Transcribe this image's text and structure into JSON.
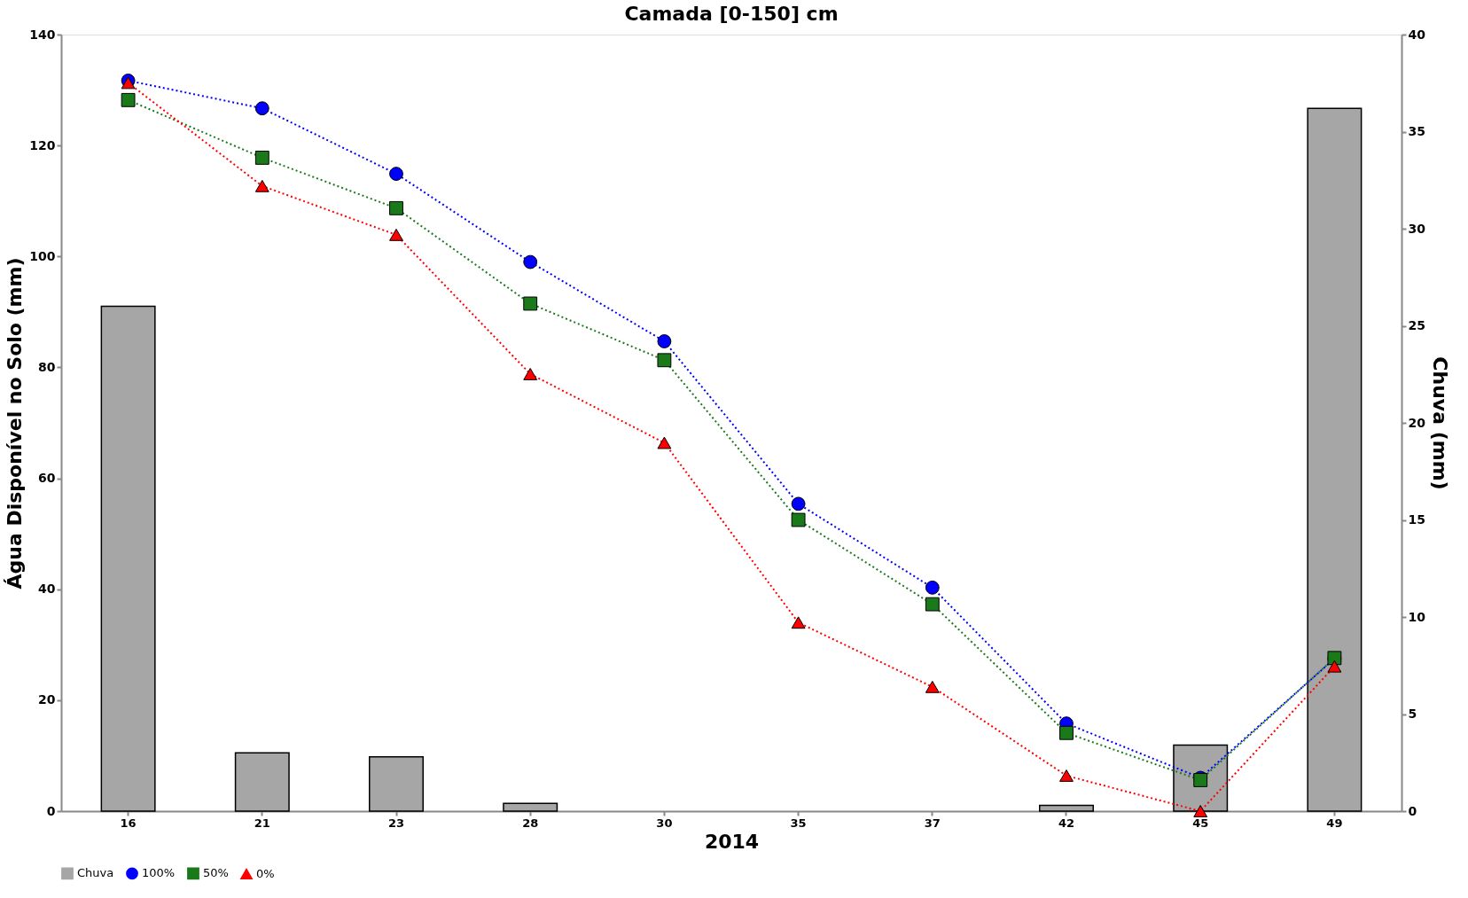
{
  "chart_data": {
    "type": "line",
    "title": "Camada [0-150] cm",
    "xlabel": "2014",
    "ylabel": "Água Disponível no Solo (mm)",
    "y2label": "Chuva (mm)",
    "categories": [
      "16",
      "21",
      "23",
      "28",
      "30",
      "35",
      "37",
      "42",
      "45",
      "49"
    ],
    "series": [
      {
        "name": "Chuva",
        "type": "bar",
        "axis": "y2",
        "color": "#a6a6a6",
        "values": [
          26.0,
          3.0,
          2.8,
          0.4,
          0,
          0,
          0,
          0.3,
          3.4,
          36.2
        ]
      },
      {
        "name": "100%",
        "color": "#0000ff",
        "marker": "circle",
        "line_style": "dotted",
        "values": [
          131.7,
          126.7,
          114.9,
          99.0,
          84.7,
          55.4,
          40.3,
          15.8,
          6.0,
          27.5
        ]
      },
      {
        "name": "50%",
        "color": "#1a7a1a",
        "marker": "square",
        "line_style": "dotted",
        "values": [
          128.2,
          117.8,
          108.7,
          91.5,
          81.3,
          52.5,
          37.3,
          14.1,
          5.6,
          27.6
        ]
      },
      {
        "name": "0%",
        "color": "#ff0000",
        "marker": "triangle",
        "line_style": "dotted",
        "values": [
          131.3,
          112.7,
          103.9,
          78.8,
          66.4,
          34.0,
          22.4,
          6.4,
          0,
          26.1
        ]
      }
    ],
    "ylim": [
      0,
      140
    ],
    "yticks": [
      0,
      20,
      40,
      60,
      80,
      100,
      120,
      140
    ],
    "y2lim": [
      0,
      40
    ],
    "y2ticks": [
      0,
      5,
      10,
      15,
      20,
      25,
      30,
      35,
      40
    ],
    "grid": false,
    "legend": "bottom"
  }
}
